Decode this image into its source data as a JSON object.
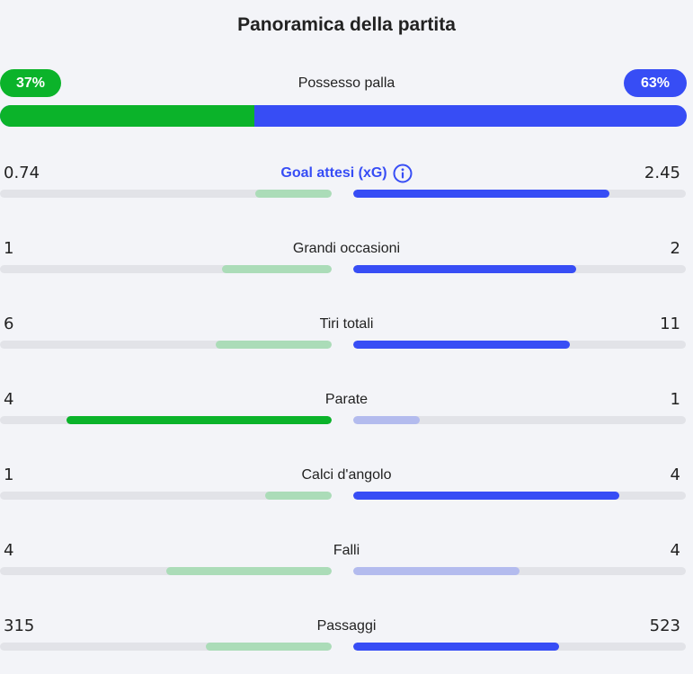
{
  "title": "Panoramica della partita",
  "possession": {
    "label": "Possesso palla",
    "home_text": "37%",
    "away_text": "63%",
    "home_fraction": 0.37
  },
  "colors": {
    "home_strong": "#0bb32a",
    "home_weak": "#abdcb8",
    "away_strong": "#374df5",
    "away_weak": "#b3bbee",
    "track": "#e2e3e8",
    "background": "#f3f4f8"
  },
  "stats": [
    {
      "label": "Goal attesi (xG)",
      "home": "0.74",
      "away": "2.45",
      "home_fraction": 0.23,
      "away_fraction": 0.77,
      "leader": "away",
      "link": true,
      "icon": "info-icon"
    },
    {
      "label": "Grandi occasioni",
      "home": "1",
      "away": "2",
      "home_fraction": 0.33,
      "away_fraction": 0.67,
      "leader": "away"
    },
    {
      "label": "Tiri totali",
      "home": "6",
      "away": "11",
      "home_fraction": 0.35,
      "away_fraction": 0.65,
      "leader": "away"
    },
    {
      "label": "Parate",
      "home": "4",
      "away": "1",
      "home_fraction": 0.8,
      "away_fraction": 0.2,
      "leader": "home"
    },
    {
      "label": "Calci d'angolo",
      "home": "1",
      "away": "4",
      "home_fraction": 0.2,
      "away_fraction": 0.8,
      "leader": "away"
    },
    {
      "label": "Falli",
      "home": "4",
      "away": "4",
      "home_fraction": 0.5,
      "away_fraction": 0.5,
      "leader": "tie"
    },
    {
      "label": "Passaggi",
      "home": "315",
      "away": "523",
      "home_fraction": 0.38,
      "away_fraction": 0.62,
      "leader": "away"
    }
  ]
}
